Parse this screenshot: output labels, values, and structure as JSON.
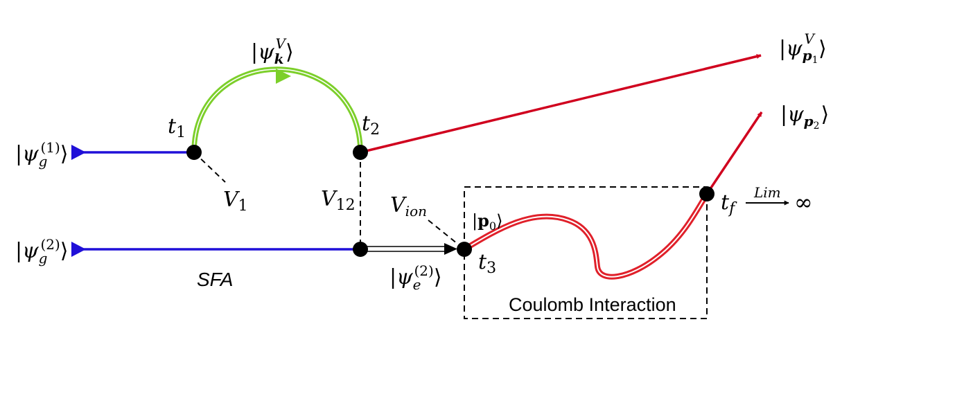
{
  "diagram": {
    "states": {
      "ground1": {
        "psi": "ψ",
        "sub": "g",
        "sup": "(1)"
      },
      "ground2": {
        "psi": "ψ",
        "sub": "g",
        "sup": "(2)"
      },
      "volkov_k": {
        "psi": "ψ",
        "sub": "k",
        "sup": "V"
      },
      "volkov_p1": {
        "psi": "ψ",
        "sub": "p",
        "subsub": "1",
        "sup": "V"
      },
      "final_p2": {
        "psi": "ψ",
        "sub": "p",
        "subsub": "2"
      },
      "excited2": {
        "psi": "ψ",
        "sub": "e",
        "sup": "(2)"
      },
      "p0": {
        "bold": "p",
        "sub": "0"
      }
    },
    "times": {
      "t1": {
        "base": "t",
        "sub": "1"
      },
      "t2": {
        "base": "t",
        "sub": "2"
      },
      "t3": {
        "base": "t",
        "sub": "3"
      },
      "tf": {
        "base": "t",
        "sub": "f"
      }
    },
    "interactions": {
      "v1": {
        "base": "V",
        "sub": "1"
      },
      "v12": {
        "base": "V",
        "sub": "12"
      },
      "vion": {
        "base": "V",
        "sub": "ion"
      }
    },
    "limit": {
      "label": "Lim",
      "symbol": "∞"
    },
    "labels": {
      "sfa": "SFA",
      "coulomb": "Coulomb Interaction"
    },
    "colors": {
      "ground": "#2010d8",
      "volkov": "#7ccf2a",
      "continuum": "#d0001e",
      "coulomb": "#e0202a",
      "vertex": "#000000"
    }
  }
}
